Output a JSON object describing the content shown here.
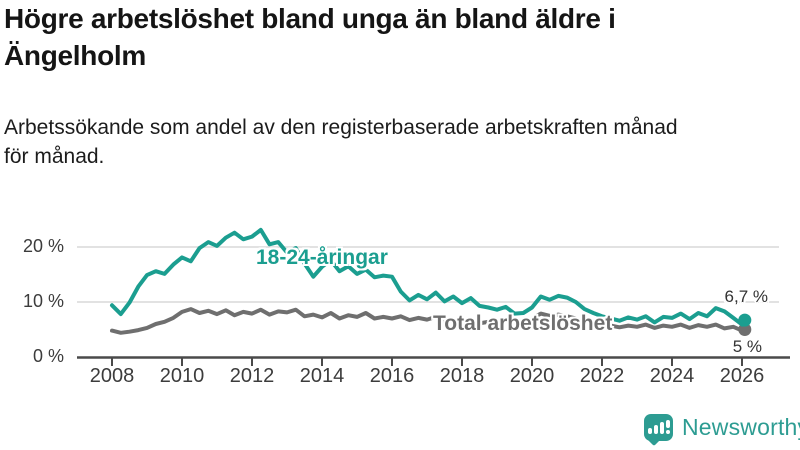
{
  "chart_data": {
    "type": "line",
    "title": "Högre arbetslöshet bland unga än bland äldre i Ängelholm",
    "subtitle": "Arbetssökande som andel av den registerbaserade arbetskraften månad för månad.",
    "unit": "%",
    "grid": "horizontal",
    "legend_position": "inline-labels",
    "y_axis": {
      "range": [
        0,
        25
      ],
      "ticks": [
        {
          "value": 0,
          "label": "0 %"
        },
        {
          "value": 10,
          "label": "10 %"
        },
        {
          "value": 20,
          "label": "20 %"
        }
      ]
    },
    "x_axis": {
      "range": [
        2007.8,
        2026.6
      ],
      "ticks": [
        {
          "value": 2008,
          "label": "2008"
        },
        {
          "value": 2010,
          "label": "2010"
        },
        {
          "value": 2012,
          "label": "2012"
        },
        {
          "value": 2014,
          "label": "2014"
        },
        {
          "value": 2016,
          "label": "2016"
        },
        {
          "value": 2018,
          "label": "2018"
        },
        {
          "value": 2020,
          "label": "2020"
        },
        {
          "value": 2022,
          "label": "2022"
        },
        {
          "value": 2024,
          "label": "2024"
        },
        {
          "value": 2026,
          "label": "2026"
        }
      ]
    },
    "series": [
      {
        "name": "18-24-åringar",
        "color": "#1b9e90",
        "end_label": "6,7 %",
        "end_value": 6.7,
        "points": [
          [
            2008,
            9.4
          ],
          [
            2008.25,
            7.8
          ],
          [
            2008.5,
            9.9
          ],
          [
            2008.75,
            12.8
          ],
          [
            2009,
            14.9
          ],
          [
            2009.25,
            15.6
          ],
          [
            2009.5,
            15.1
          ],
          [
            2009.75,
            16.8
          ],
          [
            2010,
            18.1
          ],
          [
            2010.25,
            17.4
          ],
          [
            2010.5,
            19.8
          ],
          [
            2010.75,
            20.9
          ],
          [
            2011,
            20.2
          ],
          [
            2011.25,
            21.7
          ],
          [
            2011.5,
            22.6
          ],
          [
            2011.75,
            21.4
          ],
          [
            2012,
            21.9
          ],
          [
            2012.25,
            23.1
          ],
          [
            2012.5,
            20.5
          ],
          [
            2012.75,
            20.9
          ],
          [
            2013,
            19.0
          ],
          [
            2013.25,
            19.8
          ],
          [
            2013.5,
            17.0
          ],
          [
            2013.75,
            14.6
          ],
          [
            2014,
            16.4
          ],
          [
            2014.25,
            17.6
          ],
          [
            2014.5,
            15.6
          ],
          [
            2014.75,
            16.5
          ],
          [
            2015,
            15.1
          ],
          [
            2015.25,
            15.9
          ],
          [
            2015.5,
            14.5
          ],
          [
            2015.75,
            14.8
          ],
          [
            2016,
            14.6
          ],
          [
            2016.25,
            11.9
          ],
          [
            2016.5,
            10.3
          ],
          [
            2016.75,
            11.3
          ],
          [
            2017,
            10.5
          ],
          [
            2017.25,
            11.7
          ],
          [
            2017.5,
            10.1
          ],
          [
            2017.75,
            11.0
          ],
          [
            2018,
            9.8
          ],
          [
            2018.25,
            10.7
          ],
          [
            2018.5,
            9.3
          ],
          [
            2018.75,
            9.0
          ],
          [
            2019,
            8.6
          ],
          [
            2019.25,
            9.1
          ],
          [
            2019.5,
            7.9
          ],
          [
            2019.75,
            8.0
          ],
          [
            2020,
            9.0
          ],
          [
            2020.25,
            11.0
          ],
          [
            2020.5,
            10.4
          ],
          [
            2020.75,
            11.1
          ],
          [
            2021,
            10.8
          ],
          [
            2021.25,
            10.0
          ],
          [
            2021.5,
            8.7
          ],
          [
            2021.75,
            8.0
          ],
          [
            2022,
            7.4
          ],
          [
            2022.25,
            7.0
          ],
          [
            2022.5,
            6.6
          ],
          [
            2022.75,
            7.2
          ],
          [
            2023,
            6.8
          ],
          [
            2023.25,
            7.4
          ],
          [
            2023.5,
            6.3
          ],
          [
            2023.75,
            7.3
          ],
          [
            2024,
            7.1
          ],
          [
            2024.25,
            7.9
          ],
          [
            2024.5,
            6.9
          ],
          [
            2024.75,
            8.0
          ],
          [
            2025,
            7.4
          ],
          [
            2025.25,
            8.9
          ],
          [
            2025.5,
            8.3
          ],
          [
            2025.75,
            7.1
          ],
          [
            2026,
            5.9
          ],
          [
            2026.08,
            6.7
          ]
        ]
      },
      {
        "name": "Total arbetslöshet",
        "color": "#6f6f6f",
        "end_label": "5 %",
        "end_value": 5.0,
        "points": [
          [
            2008,
            4.8
          ],
          [
            2008.25,
            4.4
          ],
          [
            2008.5,
            4.6
          ],
          [
            2008.75,
            4.9
          ],
          [
            2009,
            5.3
          ],
          [
            2009.25,
            6.0
          ],
          [
            2009.5,
            6.4
          ],
          [
            2009.75,
            7.1
          ],
          [
            2010,
            8.2
          ],
          [
            2010.25,
            8.7
          ],
          [
            2010.5,
            8.0
          ],
          [
            2010.75,
            8.4
          ],
          [
            2011,
            7.8
          ],
          [
            2011.25,
            8.5
          ],
          [
            2011.5,
            7.6
          ],
          [
            2011.75,
            8.2
          ],
          [
            2012,
            7.9
          ],
          [
            2012.25,
            8.6
          ],
          [
            2012.5,
            7.7
          ],
          [
            2012.75,
            8.3
          ],
          [
            2013,
            8.1
          ],
          [
            2013.25,
            8.6
          ],
          [
            2013.5,
            7.4
          ],
          [
            2013.75,
            7.7
          ],
          [
            2014,
            7.2
          ],
          [
            2014.25,
            8.0
          ],
          [
            2014.5,
            7.0
          ],
          [
            2014.75,
            7.6
          ],
          [
            2015,
            7.3
          ],
          [
            2015.25,
            8.0
          ],
          [
            2015.5,
            7.0
          ],
          [
            2015.75,
            7.3
          ],
          [
            2016,
            7.0
          ],
          [
            2016.25,
            7.4
          ],
          [
            2016.5,
            6.7
          ],
          [
            2016.75,
            7.1
          ],
          [
            2017,
            6.8
          ],
          [
            2017.25,
            7.3
          ],
          [
            2017.5,
            6.4
          ],
          [
            2017.75,
            6.8
          ],
          [
            2018,
            6.4
          ],
          [
            2018.25,
            6.8
          ],
          [
            2018.5,
            6.1
          ],
          [
            2018.75,
            6.4
          ],
          [
            2019,
            6.2
          ],
          [
            2019.25,
            6.6
          ],
          [
            2019.5,
            6.1
          ],
          [
            2019.75,
            6.6
          ],
          [
            2020,
            7.0
          ],
          [
            2020.25,
            7.9
          ],
          [
            2020.5,
            7.5
          ],
          [
            2020.75,
            7.7
          ],
          [
            2021,
            7.4
          ],
          [
            2021.25,
            7.0
          ],
          [
            2021.5,
            6.4
          ],
          [
            2021.75,
            6.1
          ],
          [
            2022,
            5.9
          ],
          [
            2022.25,
            5.7
          ],
          [
            2022.5,
            5.4
          ],
          [
            2022.75,
            5.7
          ],
          [
            2023,
            5.5
          ],
          [
            2023.25,
            5.9
          ],
          [
            2023.5,
            5.3
          ],
          [
            2023.75,
            5.7
          ],
          [
            2024,
            5.5
          ],
          [
            2024.25,
            5.9
          ],
          [
            2024.5,
            5.3
          ],
          [
            2024.75,
            5.8
          ],
          [
            2025,
            5.5
          ],
          [
            2025.25,
            5.9
          ],
          [
            2025.5,
            5.2
          ],
          [
            2025.75,
            5.5
          ],
          [
            2026,
            4.8
          ],
          [
            2026.08,
            5.0
          ]
        ]
      }
    ]
  },
  "footer": {
    "brand": "Newsworthy",
    "brand_color": "#2d9c92"
  }
}
